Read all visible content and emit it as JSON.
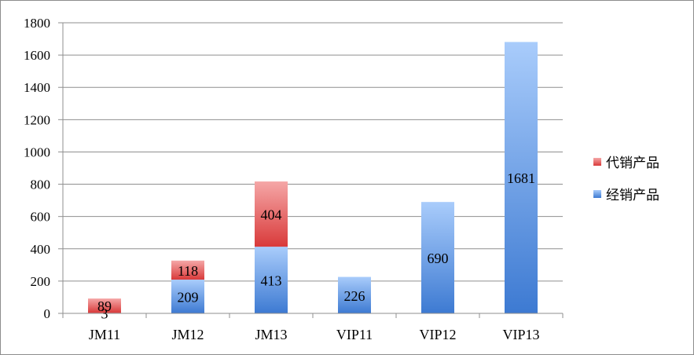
{
  "chart_data": {
    "type": "bar",
    "stacked": true,
    "categories": [
      "JM11",
      "JM12",
      "JM13",
      "VIP11",
      "VIP12",
      "VIP13"
    ],
    "series": [
      {
        "name": "经销产品",
        "values": [
          3,
          209,
          413,
          226,
          690,
          1681
        ],
        "color": "#4a86d8"
      },
      {
        "name": "代销产品",
        "values": [
          89,
          118,
          404,
          null,
          null,
          null
        ],
        "color": "#de4a4a"
      }
    ],
    "yticks": [
      "0",
      "200",
      "400",
      "600",
      "800",
      "1000",
      "1200",
      "1400",
      "1600",
      "1800"
    ],
    "ylim": [
      0,
      1800
    ],
    "grid": true,
    "legend": "right",
    "legend_order": [
      "代销产品",
      "经销产品"
    ]
  }
}
